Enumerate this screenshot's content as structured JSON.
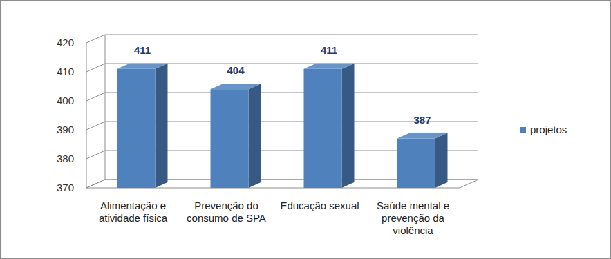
{
  "chart_data": {
    "type": "bar",
    "categories": [
      "Alimentação e atividade física",
      "Prevenção do consumo de SPA",
      "Educação sexual",
      "Saúde mental e prevenção da violência"
    ],
    "series": [
      {
        "name": "projetos",
        "color": "#4f81bd",
        "values": [
          411,
          404,
          411,
          387
        ]
      }
    ],
    "ylim": [
      370,
      420
    ],
    "yticks": [
      370,
      380,
      390,
      400,
      410,
      420
    ],
    "grid": true,
    "data_labels": true,
    "legend": "right"
  }
}
